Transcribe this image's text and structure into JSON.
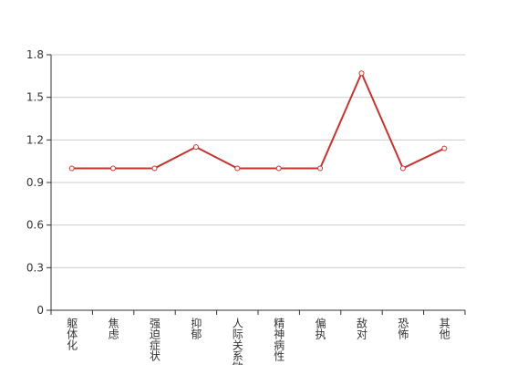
{
  "chart_data": {
    "type": "line",
    "categories": [
      "躯体化",
      "焦虑",
      "强迫症状",
      "抑郁",
      "人际关系敏感",
      "精神病性",
      "偏执",
      "敌对",
      "恐怖",
      "其他"
    ],
    "values": [
      1,
      1,
      1,
      1.15,
      1,
      1,
      1,
      1.67,
      1,
      1.14
    ],
    "color": "#c23531",
    "ylim": [
      0,
      1.8
    ],
    "yticks": [
      0,
      0.3,
      0.6,
      0.9,
      1.2,
      1.5,
      1.8
    ],
    "grid": true
  }
}
